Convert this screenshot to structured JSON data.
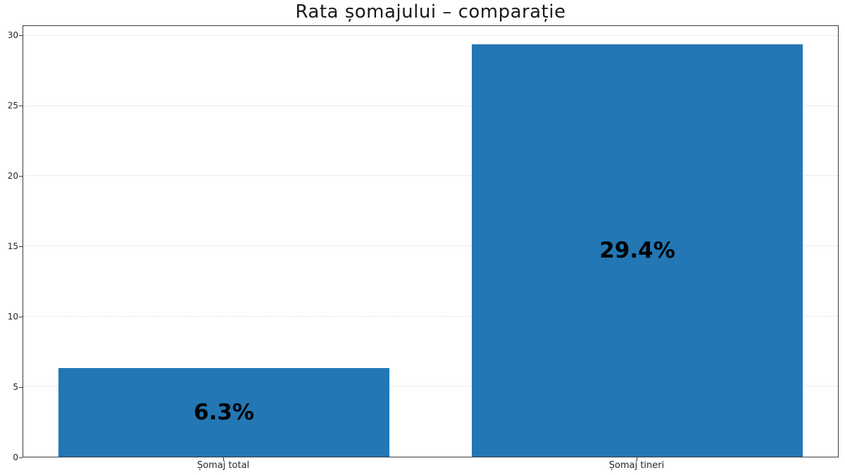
{
  "chart_data": {
    "type": "bar",
    "title": "Rata șomajului – comparație",
    "categories": [
      "Șomaj total",
      "Șomaj tineri"
    ],
    "values": [
      6.3,
      29.4
    ],
    "value_labels": [
      "6.3%",
      "29.4%"
    ],
    "xlabel": "",
    "ylabel": "",
    "yticks": [
      0,
      5,
      10,
      15,
      20,
      25,
      30
    ],
    "ylim": [
      0,
      30.7
    ],
    "grid": "horizontal-dotted",
    "legend": "none",
    "colors": {
      "bar": "#2277b4",
      "value_label": "#000000",
      "spine": "#3a3a3a",
      "gridline": "#d8d8d8",
      "tick_text": "#262626",
      "title_text": "#1a1a1a",
      "background": "#ffffff"
    }
  }
}
